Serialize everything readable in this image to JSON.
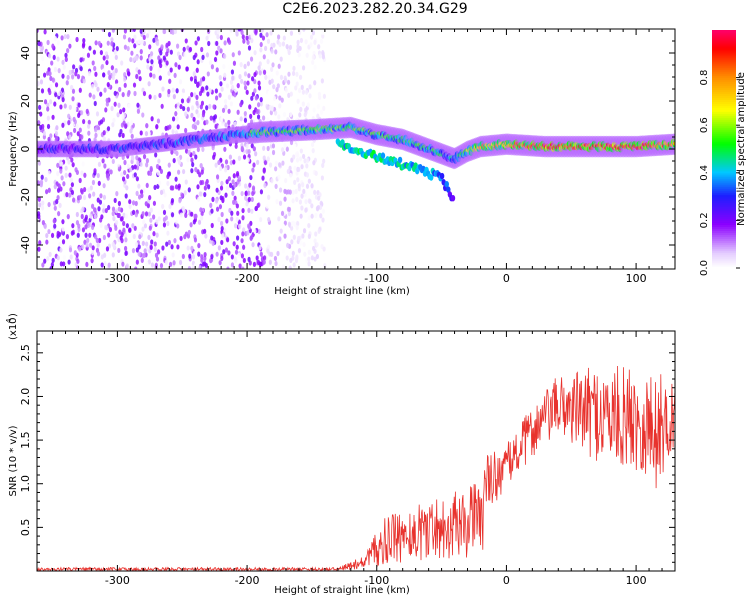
{
  "title": "C2E6.2023.282.20.34.G29",
  "chart_data": [
    {
      "type": "heatmap",
      "xlabel": "Height of straight line (km)",
      "ylabel": "Frequency (Hz)",
      "xlim": [
        -362,
        130
      ],
      "ylim": [
        -50,
        50
      ],
      "x_ticks": [
        -300,
        -200,
        -100,
        0,
        100
      ],
      "y_ticks": [
        -40,
        -20,
        0,
        20,
        40
      ],
      "colorbar": {
        "label": "Normalized spectral amplitude",
        "range": [
          0.0,
          1.0
        ],
        "ticks": [
          0.0,
          0.2,
          0.4,
          0.6,
          0.8
        ],
        "tick_labels": [
          "0.0",
          "0.2",
          "0.4",
          "0.6",
          "0.8"
        ]
      },
      "noise_region": {
        "x_from": -362,
        "x_to": -140,
        "freq_from": -50,
        "freq_to": 50,
        "amplitude": 0.15
      },
      "signal_track": [
        {
          "x": -362,
          "freq": 0,
          "amp": 0.3
        },
        {
          "x": -300,
          "freq": 0,
          "amp": 0.35
        },
        {
          "x": -190,
          "freq": 7,
          "amp": 0.5
        },
        {
          "x": -150,
          "freq": 8,
          "amp": 0.55
        },
        {
          "x": -120,
          "freq": 9,
          "amp": 0.5
        },
        {
          "x": -100,
          "freq": 6,
          "amp": 0.5
        },
        {
          "x": -80,
          "freq": 4,
          "amp": 0.5
        },
        {
          "x": -60,
          "freq": 0,
          "amp": 0.45
        },
        {
          "x": -40,
          "freq": -4,
          "amp": 0.4
        },
        {
          "x": -30,
          "freq": -1,
          "amp": 0.55
        },
        {
          "x": -20,
          "freq": 1,
          "amp": 0.75
        },
        {
          "x": 0,
          "freq": 2,
          "amp": 0.75
        },
        {
          "x": 30,
          "freq": 1,
          "amp": 0.9
        },
        {
          "x": 60,
          "freq": 1,
          "amp": 0.85
        },
        {
          "x": 100,
          "freq": 1,
          "amp": 0.9
        },
        {
          "x": 130,
          "freq": 2,
          "amp": 0.8
        }
      ],
      "branch_track": [
        {
          "x": -130,
          "freq": 2,
          "amp": 0.4
        },
        {
          "x": -100,
          "freq": -3,
          "amp": 0.45
        },
        {
          "x": -70,
          "freq": -8,
          "amp": 0.4
        },
        {
          "x": -50,
          "freq": -12,
          "amp": 0.35
        },
        {
          "x": -40,
          "freq": -22,
          "amp": 0.25
        }
      ]
    },
    {
      "type": "line",
      "xlabel": "Height of straight line (km)",
      "ylabel": "SNR (10 * v/v)",
      "yscale_label": "(x10",
      "yscale_exp": "4",
      "yscale_close": ")",
      "xlim": [
        -362,
        130
      ],
      "ylim": [
        0,
        2.75
      ],
      "x_ticks": [
        -300,
        -200,
        -100,
        0,
        100
      ],
      "y_ticks": [
        0.5,
        1.0,
        1.5,
        2.0,
        2.5
      ],
      "y_tick_labels": [
        "0.5",
        "1.0",
        "1.5",
        "2.0",
        "2.5"
      ],
      "color": "#e8322d",
      "envelope": [
        {
          "x": -362,
          "mean": 0.02,
          "amp": 0.02
        },
        {
          "x": -130,
          "mean": 0.02,
          "amp": 0.02
        },
        {
          "x": -110,
          "mean": 0.08,
          "amp": 0.1
        },
        {
          "x": -95,
          "mean": 0.25,
          "amp": 0.35
        },
        {
          "x": -60,
          "mean": 0.4,
          "amp": 0.45
        },
        {
          "x": -30,
          "mean": 0.45,
          "amp": 0.5
        },
        {
          "x": -20,
          "mean": 0.55,
          "amp": 0.55
        },
        {
          "x": -15,
          "mean": 1.0,
          "amp": 0.35
        },
        {
          "x": 0,
          "mean": 1.2,
          "amp": 0.25
        },
        {
          "x": 20,
          "mean": 1.6,
          "amp": 0.3
        },
        {
          "x": 40,
          "mean": 1.9,
          "amp": 0.35
        },
        {
          "x": 70,
          "mean": 1.8,
          "amp": 0.55
        },
        {
          "x": 100,
          "mean": 1.75,
          "amp": 0.6
        },
        {
          "x": 115,
          "mean": 1.6,
          "amp": 0.7
        },
        {
          "x": 130,
          "mean": 1.8,
          "amp": 0.4
        }
      ]
    }
  ]
}
